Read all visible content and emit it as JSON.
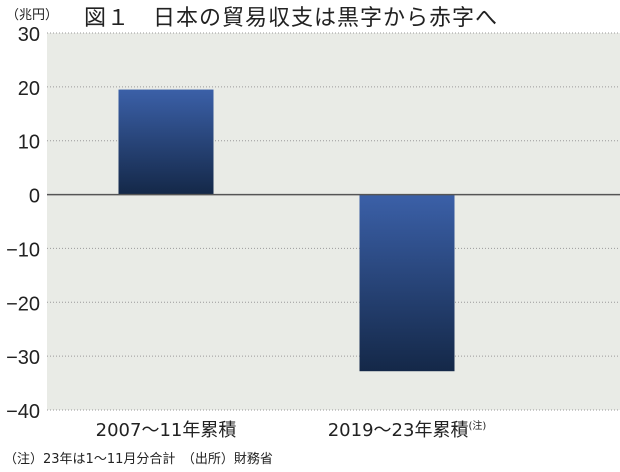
{
  "chart_data": {
    "type": "bar",
    "title": "図１　日本の貿易収支は黒字から赤字へ",
    "ylabel": "（兆円）",
    "xlabel": "",
    "categories": [
      "2007〜11年累積",
      "2019〜23年累積"
    ],
    "category_note_marks": [
      "",
      "(注)"
    ],
    "values": [
      19.5,
      -32.8
    ],
    "ylim": [
      -40,
      30
    ],
    "yticks": [
      30,
      20,
      10,
      0,
      -10,
      -20,
      -30,
      -40
    ],
    "ytick_labels": [
      "30",
      "20",
      "10",
      "0",
      "−10",
      "−20",
      "−30",
      "−40"
    ],
    "grid": true,
    "legend": "none",
    "footnote": "（注）23年は1〜11月分合計　（出所）財務省",
    "colors": {
      "bar_top": "#3b60a8",
      "bar_bottom": "#142848",
      "plot_bg": "#e9ebe6",
      "grid": "#9a9a9a"
    }
  }
}
